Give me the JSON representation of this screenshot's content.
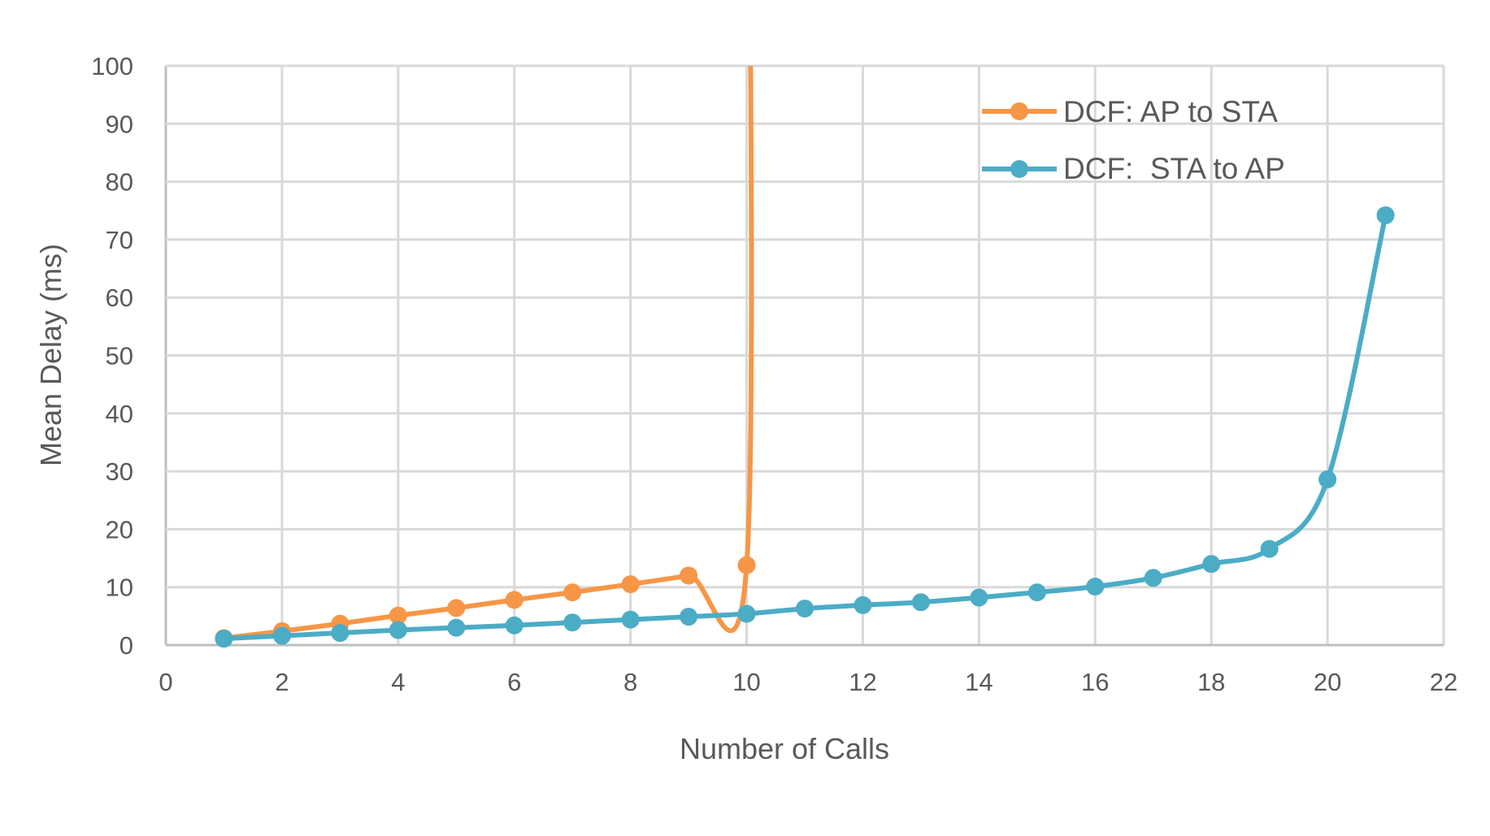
{
  "chart_data": {
    "type": "line",
    "title": "",
    "xlabel": "Number of Calls",
    "ylabel": "Mean Delay (ms)",
    "xlim": [
      0,
      22
    ],
    "ylim": [
      0,
      100
    ],
    "xticks": [
      0,
      2,
      4,
      6,
      8,
      10,
      12,
      14,
      16,
      18,
      20,
      22
    ],
    "yticks": [
      0,
      10,
      20,
      30,
      40,
      50,
      60,
      70,
      80,
      90,
      100
    ],
    "grid": true,
    "legend_position": "top-right",
    "series": [
      {
        "name": "DCF: AP to STA",
        "color": "#F79646",
        "x": [
          1,
          2,
          3,
          4,
          5,
          6,
          7,
          8,
          9,
          10
        ],
        "y": [
          1.2,
          2.4,
          3.7,
          5.1,
          6.4,
          7.8,
          9.1,
          10.5,
          12.0,
          13.8
        ],
        "continues_off_chart_at_x": 10
      },
      {
        "name": "DCF:  STA to AP",
        "color": "#4BACC6",
        "x": [
          1,
          2,
          3,
          4,
          5,
          6,
          7,
          8,
          9,
          10,
          11,
          12,
          13,
          14,
          15,
          16,
          17,
          18,
          19,
          20,
          21
        ],
        "y": [
          1.1,
          1.6,
          2.1,
          2.6,
          3.0,
          3.4,
          3.9,
          4.4,
          4.9,
          5.4,
          6.3,
          6.9,
          7.4,
          8.2,
          9.1,
          10.1,
          11.6,
          14.0,
          16.6,
          28.6,
          74.2
        ]
      }
    ]
  }
}
